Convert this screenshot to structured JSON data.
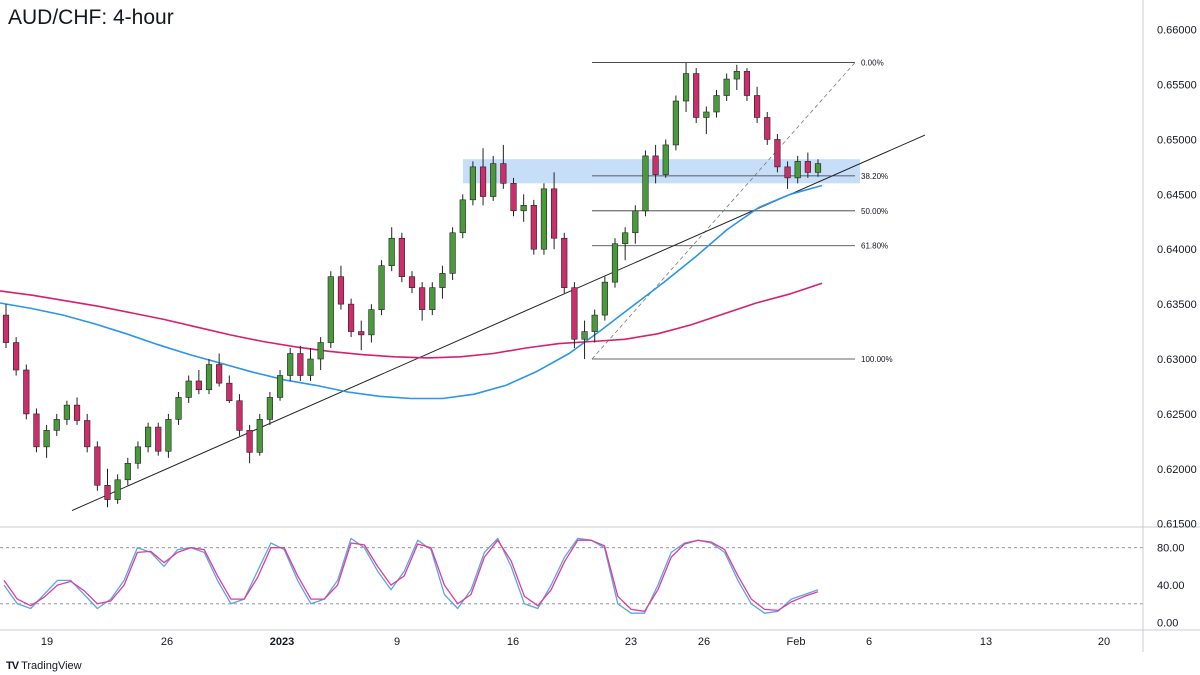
{
  "title": "AUD/CHF: 4-hour",
  "brand": {
    "icon": "tradingview-logo-icon",
    "label": "TradingView"
  },
  "colors": {
    "up": "#4a9a3d",
    "down": "#cc2e6c",
    "sma_fast": "#2b95e8",
    "sma_slow": "#d6206f",
    "zone": "#bcd8f7",
    "stoch_k": "#58a6e8",
    "stoch_d": "#e13c9c",
    "axis_text": "#131722",
    "grid": "#e0e3eb"
  },
  "chart_data": [
    {
      "type": "candlestick",
      "title": "AUD/CHF: 4-hour",
      "x_ticks": [
        "19",
        "26",
        "2023",
        "9",
        "16",
        "23",
        "26",
        "Feb",
        "6",
        "13",
        "20"
      ],
      "y_ticks": [
        "0.66000",
        "0.65500",
        "0.65000",
        "0.64500",
        "0.64000",
        "0.63500",
        "0.63000",
        "0.62500",
        "0.62000",
        "0.61500"
      ],
      "ylim": [
        0.6147,
        0.6627
      ],
      "fibonacci": [
        {
          "label": "0.00%",
          "price": 0.657
        },
        {
          "label": "38.20%",
          "price": 0.64668
        },
        {
          "label": "50.00%",
          "price": 0.6435
        },
        {
          "label": "61.80%",
          "price": 0.64032
        },
        {
          "label": "100.00%",
          "price": 0.63
        }
      ],
      "zone": {
        "low": 0.646,
        "high": 0.6482
      },
      "moving_averages": [
        {
          "color": "#2b95e8",
          "values": [
            0.6351,
            0.6346,
            0.634,
            0.6332,
            0.6323,
            0.6313,
            0.6304,
            0.6296,
            0.6288,
            0.6281,
            0.6276,
            0.627,
            0.6266,
            0.6264,
            0.6264,
            0.6268,
            0.6276,
            0.6289,
            0.6305,
            0.6326,
            0.6348,
            0.637,
            0.6393,
            0.6418,
            0.6438,
            0.645,
            0.6458
          ]
        },
        {
          "color": "#d6206f",
          "values": [
            0.6362,
            0.6358,
            0.6353,
            0.6348,
            0.6342,
            0.6336,
            0.6329,
            0.6322,
            0.6316,
            0.6311,
            0.6307,
            0.6304,
            0.6302,
            0.6301,
            0.6302,
            0.6305,
            0.631,
            0.6314,
            0.6316,
            0.6318,
            0.6323,
            0.6331,
            0.6341,
            0.6351,
            0.6359,
            0.6369
          ]
        }
      ],
      "trendline": [
        {
          "date": "Dec 21",
          "price": 0.6162
        },
        {
          "date": "Feb 6",
          "price": 0.6504
        }
      ],
      "candles": [
        [
          0.634,
          0.635,
          0.631,
          0.6315
        ],
        [
          0.6315,
          0.632,
          0.6285,
          0.629
        ],
        [
          0.629,
          0.6295,
          0.6245,
          0.625
        ],
        [
          0.625,
          0.6255,
          0.6215,
          0.622
        ],
        [
          0.622,
          0.624,
          0.621,
          0.6235
        ],
        [
          0.6235,
          0.625,
          0.623,
          0.6245
        ],
        [
          0.6245,
          0.6262,
          0.624,
          0.6258
        ],
        [
          0.6258,
          0.6265,
          0.624,
          0.6244
        ],
        [
          0.6244,
          0.625,
          0.6215,
          0.622
        ],
        [
          0.622,
          0.6225,
          0.618,
          0.6185
        ],
        [
          0.6185,
          0.62,
          0.6165,
          0.6172
        ],
        [
          0.6172,
          0.6195,
          0.6168,
          0.619
        ],
        [
          0.619,
          0.621,
          0.6185,
          0.6205
        ],
        [
          0.6205,
          0.6225,
          0.62,
          0.622
        ],
        [
          0.622,
          0.6242,
          0.6215,
          0.6238
        ],
        [
          0.6238,
          0.6242,
          0.6212,
          0.6216
        ],
        [
          0.6216,
          0.625,
          0.621,
          0.6245
        ],
        [
          0.6245,
          0.627,
          0.624,
          0.6265
        ],
        [
          0.6265,
          0.6285,
          0.626,
          0.628
        ],
        [
          0.628,
          0.629,
          0.6268,
          0.6272
        ],
        [
          0.6272,
          0.63,
          0.6268,
          0.6295
        ],
        [
          0.6295,
          0.6305,
          0.6275,
          0.6278
        ],
        [
          0.6278,
          0.6285,
          0.626,
          0.6262
        ],
        [
          0.6262,
          0.6268,
          0.623,
          0.6235
        ],
        [
          0.6235,
          0.624,
          0.6205,
          0.6215
        ],
        [
          0.6215,
          0.625,
          0.6212,
          0.6245
        ],
        [
          0.6245,
          0.627,
          0.624,
          0.6265
        ],
        [
          0.6265,
          0.629,
          0.6262,
          0.6285
        ],
        [
          0.6285,
          0.631,
          0.628,
          0.6305
        ],
        [
          0.6305,
          0.6312,
          0.628,
          0.6285
        ],
        [
          0.6285,
          0.631,
          0.628,
          0.63
        ],
        [
          0.63,
          0.632,
          0.629,
          0.6315
        ],
        [
          0.6315,
          0.638,
          0.631,
          0.6375
        ],
        [
          0.6375,
          0.6385,
          0.6345,
          0.635
        ],
        [
          0.635,
          0.6355,
          0.632,
          0.6325
        ],
        [
          0.6325,
          0.6335,
          0.6308,
          0.6322
        ],
        [
          0.6322,
          0.635,
          0.6315,
          0.6345
        ],
        [
          0.6345,
          0.639,
          0.634,
          0.6385
        ],
        [
          0.6385,
          0.642,
          0.638,
          0.641
        ],
        [
          0.641,
          0.6415,
          0.637,
          0.6375
        ],
        [
          0.6375,
          0.638,
          0.636,
          0.6365
        ],
        [
          0.6365,
          0.637,
          0.6335,
          0.6345
        ],
        [
          0.6345,
          0.637,
          0.634,
          0.6365
        ],
        [
          0.6365,
          0.6385,
          0.6355,
          0.6378
        ],
        [
          0.6378,
          0.642,
          0.6372,
          0.6415
        ],
        [
          0.6415,
          0.645,
          0.641,
          0.6445
        ],
        [
          0.6445,
          0.648,
          0.644,
          0.6475
        ],
        [
          0.6475,
          0.6492,
          0.644,
          0.6448
        ],
        [
          0.6448,
          0.6485,
          0.6444,
          0.6478
        ],
        [
          0.6478,
          0.6495,
          0.6455,
          0.646
        ],
        [
          0.646,
          0.6465,
          0.643,
          0.6435
        ],
        [
          0.6435,
          0.645,
          0.6425,
          0.644
        ],
        [
          0.644,
          0.6445,
          0.6395,
          0.64
        ],
        [
          0.64,
          0.646,
          0.6395,
          0.6455
        ],
        [
          0.6455,
          0.647,
          0.64,
          0.641
        ],
        [
          0.641,
          0.6415,
          0.636,
          0.6365
        ],
        [
          0.6365,
          0.637,
          0.631,
          0.6318
        ],
        [
          0.6318,
          0.6335,
          0.63,
          0.6325
        ],
        [
          0.6325,
          0.6345,
          0.6315,
          0.634
        ],
        [
          0.634,
          0.6375,
          0.6335,
          0.637
        ],
        [
          0.637,
          0.641,
          0.6365,
          0.6405
        ],
        [
          0.6405,
          0.642,
          0.639,
          0.6415
        ],
        [
          0.6415,
          0.644,
          0.6405,
          0.6435
        ],
        [
          0.6435,
          0.649,
          0.643,
          0.6485
        ],
        [
          0.6485,
          0.6495,
          0.646,
          0.6468
        ],
        [
          0.6468,
          0.65,
          0.6465,
          0.6495
        ],
        [
          0.6495,
          0.654,
          0.649,
          0.6535
        ],
        [
          0.6535,
          0.657,
          0.6525,
          0.656
        ],
        [
          0.656,
          0.6565,
          0.6515,
          0.652
        ],
        [
          0.652,
          0.653,
          0.6505,
          0.6525
        ],
        [
          0.6525,
          0.6545,
          0.652,
          0.654
        ],
        [
          0.654,
          0.656,
          0.6535,
          0.6555
        ],
        [
          0.6555,
          0.6568,
          0.6545,
          0.6562
        ],
        [
          0.6562,
          0.6565,
          0.6535,
          0.654
        ],
        [
          0.654,
          0.6548,
          0.6515,
          0.652
        ],
        [
          0.652,
          0.6525,
          0.6495,
          0.65
        ],
        [
          0.65,
          0.6505,
          0.647,
          0.6475
        ],
        [
          0.6475,
          0.648,
          0.6455,
          0.6465
        ],
        [
          0.6465,
          0.6485,
          0.646,
          0.648
        ],
        [
          0.648,
          0.6488,
          0.6465,
          0.647
        ],
        [
          0.647,
          0.6482,
          0.6466,
          0.6478
        ]
      ]
    },
    {
      "type": "line",
      "indicator": "stochastic",
      "y_ticks": [
        "80.00",
        "40.00",
        "0.00"
      ],
      "levels": [
        80,
        20
      ],
      "ylim": [
        -8,
        100
      ],
      "series": [
        {
          "color": "#58a6e8",
          "values": [
            40,
            20,
            15,
            30,
            45,
            45,
            30,
            15,
            25,
            45,
            80,
            75,
            60,
            78,
            80,
            75,
            45,
            20,
            25,
            55,
            85,
            78,
            45,
            20,
            25,
            45,
            90,
            80,
            55,
            35,
            55,
            88,
            78,
            30,
            15,
            35,
            75,
            90,
            60,
            20,
            15,
            40,
            70,
            90,
            88,
            80,
            20,
            10,
            10,
            40,
            75,
            85,
            88,
            85,
            75,
            45,
            20,
            10,
            12,
            25,
            30,
            35
          ]
        },
        {
          "color": "#e13c9c",
          "values": [
            45,
            25,
            18,
            27,
            40,
            44,
            34,
            20,
            23,
            40,
            75,
            76,
            64,
            75,
            80,
            78,
            50,
            25,
            25,
            48,
            80,
            80,
            50,
            25,
            25,
            40,
            85,
            83,
            60,
            40,
            50,
            84,
            80,
            40,
            20,
            30,
            70,
            88,
            66,
            28,
            18,
            35,
            65,
            88,
            88,
            82,
            28,
            14,
            12,
            35,
            70,
            84,
            88,
            86,
            78,
            50,
            25,
            14,
            13,
            22,
            28,
            33
          ]
        }
      ]
    }
  ]
}
